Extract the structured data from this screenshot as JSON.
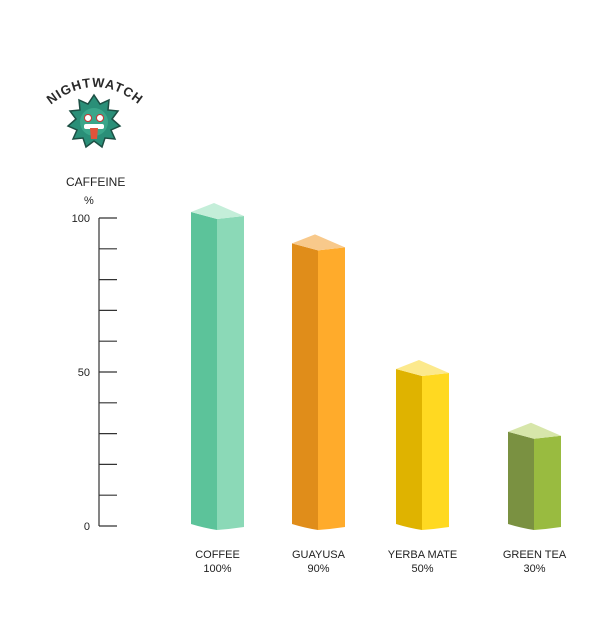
{
  "logo": {
    "text": "NIGHTWATCH",
    "icon": "green-dragon-mask"
  },
  "chart_data": {
    "type": "bar",
    "style": "3d-columns",
    "ylabel": "CAFFEINE",
    "yunit": "%",
    "ylim": [
      0,
      100
    ],
    "yticks": [
      0,
      50,
      100
    ],
    "minor_tick_step": 10,
    "grid": false,
    "categories": [
      "COFFEE",
      "GUAYUSA",
      "YERBA MATE",
      "GREEN TEA"
    ],
    "values": [
      100,
      90,
      50,
      30
    ],
    "value_labels": [
      "100%",
      "90%",
      "50%",
      "30%"
    ],
    "colors": [
      {
        "dark": "#5cc39a",
        "light": "#8bd9b7",
        "top": "#c4eed9"
      },
      {
        "dark": "#e08d1a",
        "light": "#ffab2b",
        "top": "#f8c98b"
      },
      {
        "dark": "#dfb300",
        "light": "#ffd921",
        "top": "#fce98c"
      },
      {
        "dark": "#7a9141",
        "light": "#99bb40",
        "top": "#d7e6aa"
      }
    ]
  }
}
